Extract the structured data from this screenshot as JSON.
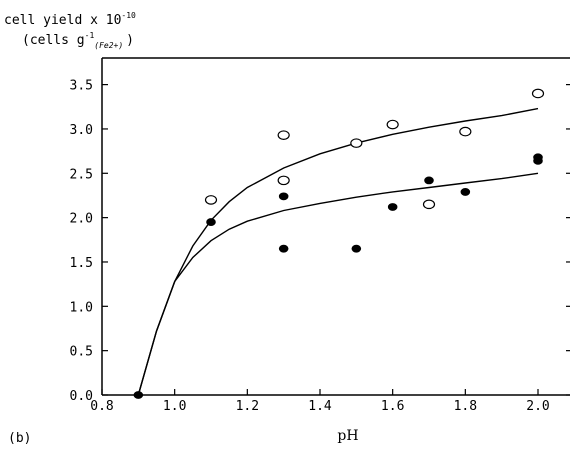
{
  "chart_data": {
    "type": "scatter",
    "panel_label": "(b)",
    "ylabel_line1": "cell yield x 10",
    "ylabel_exponent": "-10",
    "ylabel_line2_prefix": "(cells  g",
    "ylabel_line2_sup": "-1",
    "ylabel_line2_sub": "(Fe2+)",
    "ylabel_line2_suffix": ")",
    "xlabel": "pH",
    "xlim": [
      0.8,
      2.1
    ],
    "ylim": [
      0.0,
      3.8
    ],
    "x_ticks": [
      0.8,
      1.0,
      1.2,
      1.4,
      1.6,
      1.8,
      2.0
    ],
    "x_tick_labels": [
      "0.8",
      "1.0",
      "1.2",
      "1.4",
      "1.6",
      "1.8",
      "2.0"
    ],
    "y_ticks": [
      0.0,
      0.5,
      1.0,
      1.5,
      2.0,
      2.5,
      3.0,
      3.5
    ],
    "y_tick_labels": [
      "0.0",
      "0.5",
      "1.0",
      "1.5",
      "2.0",
      "2.5",
      "3.0",
      "3.5"
    ],
    "grid": false,
    "series": [
      {
        "marker": "open-circle",
        "points": [
          [
            1.1,
            2.2
          ],
          [
            1.3,
            2.93
          ],
          [
            1.3,
            2.42
          ],
          [
            1.5,
            2.84
          ],
          [
            1.6,
            3.05
          ],
          [
            1.7,
            2.15
          ],
          [
            1.8,
            2.97
          ],
          [
            2.0,
            3.4
          ]
        ]
      },
      {
        "marker": "filled-circle",
        "points": [
          [
            0.9,
            0.0
          ],
          [
            1.1,
            1.95
          ],
          [
            1.3,
            2.24
          ],
          [
            1.3,
            1.65
          ],
          [
            1.5,
            1.65
          ],
          [
            1.6,
            2.12
          ],
          [
            1.7,
            2.42
          ],
          [
            1.8,
            2.29
          ],
          [
            2.0,
            2.68
          ],
          [
            2.0,
            2.64
          ]
        ]
      }
    ],
    "curves": [
      {
        "style": "solid",
        "points": [
          [
            0.9,
            0.0
          ],
          [
            0.95,
            0.72
          ],
          [
            1.0,
            1.28
          ],
          [
            1.05,
            1.68
          ],
          [
            1.1,
            1.97
          ],
          [
            1.15,
            2.18
          ],
          [
            1.2,
            2.34
          ],
          [
            1.3,
            2.56
          ],
          [
            1.4,
            2.72
          ],
          [
            1.5,
            2.84
          ],
          [
            1.6,
            2.94
          ],
          [
            1.7,
            3.02
          ],
          [
            1.8,
            3.09
          ],
          [
            1.9,
            3.15
          ],
          [
            2.0,
            3.23
          ]
        ]
      },
      {
        "style": "solid",
        "points": [
          [
            0.9,
            0.0
          ],
          [
            0.95,
            0.72
          ],
          [
            1.0,
            1.28
          ],
          [
            1.05,
            1.55
          ],
          [
            1.1,
            1.74
          ],
          [
            1.15,
            1.87
          ],
          [
            1.2,
            1.96
          ],
          [
            1.3,
            2.08
          ],
          [
            1.4,
            2.16
          ],
          [
            1.5,
            2.23
          ],
          [
            1.6,
            2.29
          ],
          [
            1.7,
            2.34
          ],
          [
            1.8,
            2.39
          ],
          [
            1.9,
            2.44
          ],
          [
            2.0,
            2.5
          ]
        ]
      }
    ]
  }
}
